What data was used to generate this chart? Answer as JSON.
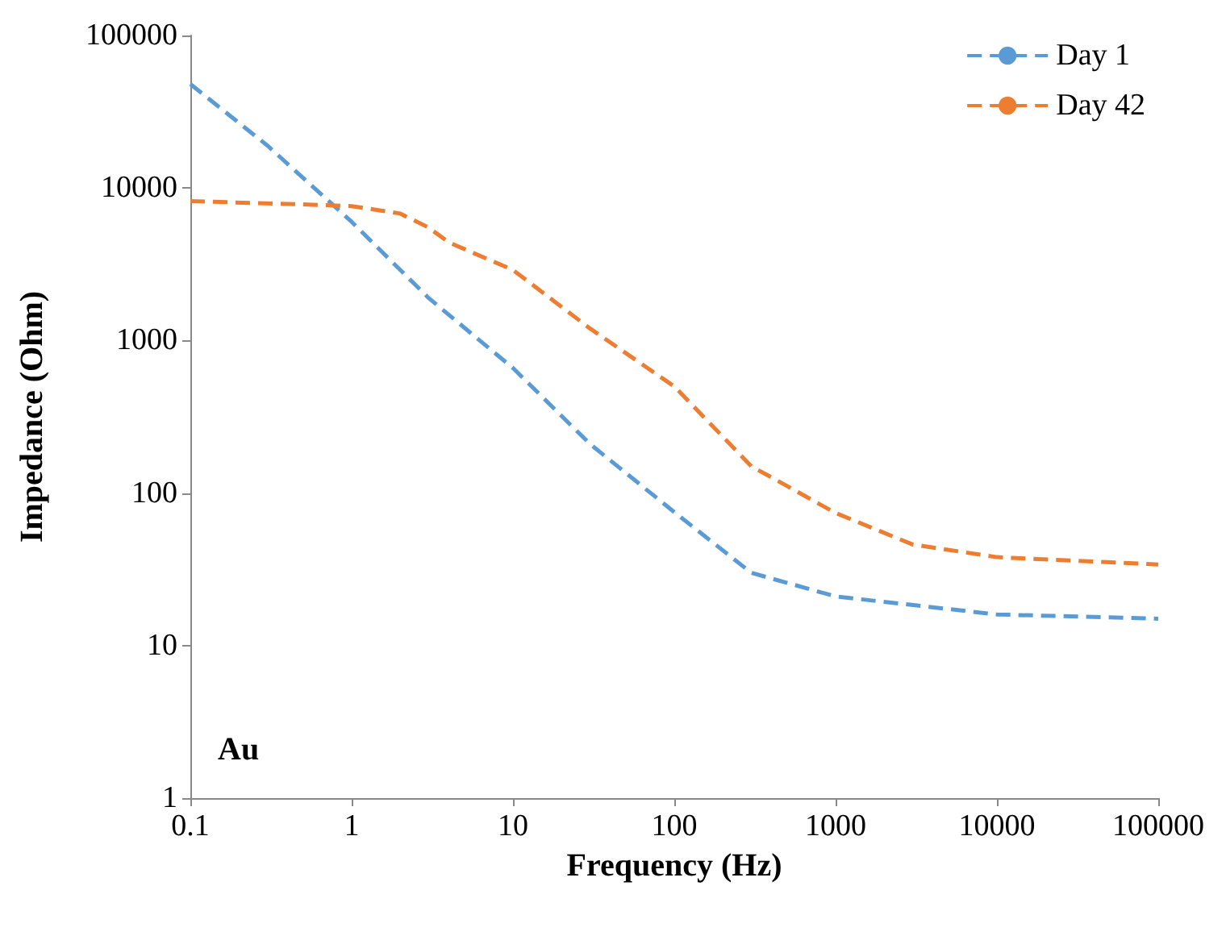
{
  "chart_data": {
    "type": "line",
    "xlabel": "Frequency (Hz)",
    "ylabel": "Impedance (Ohm)",
    "log": "xy",
    "xlim": [
      0.1,
      100000
    ],
    "xticks": [
      0.1,
      1,
      10,
      100,
      1000,
      10000,
      100000
    ],
    "ylim": [
      1,
      100000
    ],
    "yticks": [
      1,
      10,
      100,
      1000,
      10000,
      100000
    ],
    "grid": false,
    "legend": "top right",
    "marker": "none",
    "annotations": [
      "Au"
    ],
    "series": [
      {
        "name": "Day 1",
        "color": "#5b9bd5",
        "line_style": "dashed",
        "x": [
          0.1,
          0.3,
          1,
          3,
          10,
          30,
          100,
          300,
          1000,
          10000,
          100000
        ],
        "values": [
          48000,
          19000,
          6000,
          1900,
          660,
          210,
          75,
          30,
          21,
          16,
          15
        ]
      },
      {
        "name": "Day 42",
        "color": "#ed7d31",
        "line_style": "dashed",
        "x": [
          0.1,
          0.5,
          1,
          2,
          3,
          4,
          10,
          30,
          100,
          300,
          1000,
          3000,
          10000,
          100000
        ],
        "values": [
          8200,
          7800,
          7600,
          6800,
          5500,
          4400,
          2900,
          1200,
          500,
          150,
          74,
          46,
          38,
          34
        ]
      }
    ]
  }
}
